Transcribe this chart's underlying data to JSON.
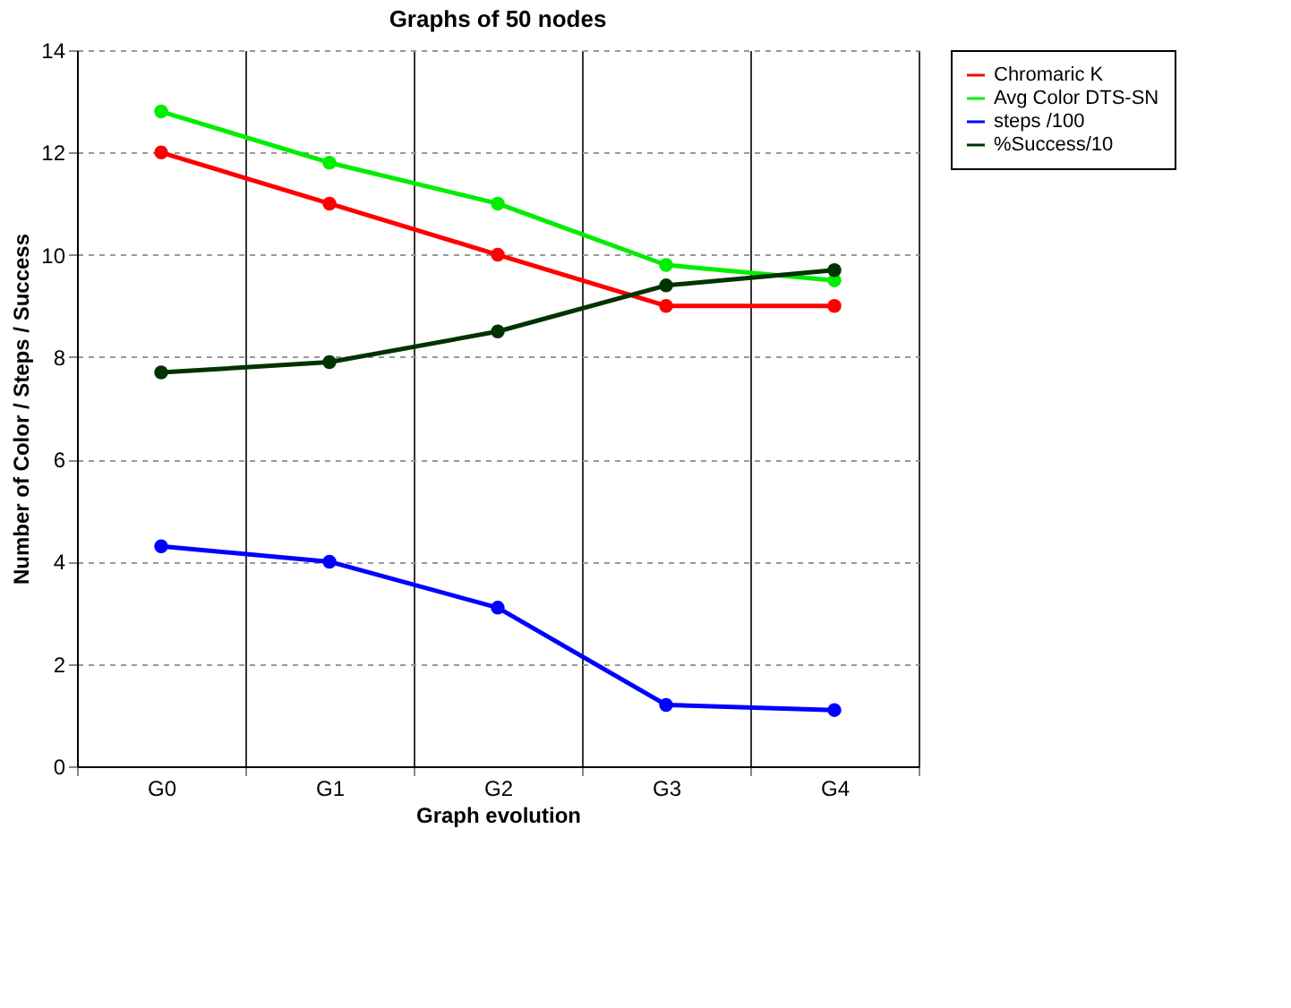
{
  "chart_data": {
    "type": "line",
    "title": "Graphs of 50 nodes",
    "xlabel": "Graph evolution",
    "ylabel": "Number of Color / Steps / Success",
    "categories": [
      "G0",
      "G1",
      "G2",
      "G3",
      "G4"
    ],
    "series": [
      {
        "name": "Chromaric K",
        "color": "#ff0000",
        "values": [
          12,
          11,
          10,
          9,
          9
        ]
      },
      {
        "name": "Avg Color DTS-SN",
        "color": "#00ee00",
        "values": [
          12.8,
          11.8,
          11,
          9.8,
          9.5
        ]
      },
      {
        "name": "steps /100",
        "color": "#0000ff",
        "values": [
          4.3,
          4.0,
          3.1,
          1.2,
          1.1
        ]
      },
      {
        "name": "%Success/10",
        "color": "#003300",
        "values": [
          7.7,
          7.9,
          8.5,
          9.4,
          9.7
        ]
      }
    ],
    "ylim": [
      0,
      14
    ],
    "yticks": [
      0,
      2,
      4,
      6,
      8,
      10,
      12,
      14
    ],
    "grid": true,
    "legend": "right",
    "marker": "circle",
    "line_style": "solid"
  }
}
